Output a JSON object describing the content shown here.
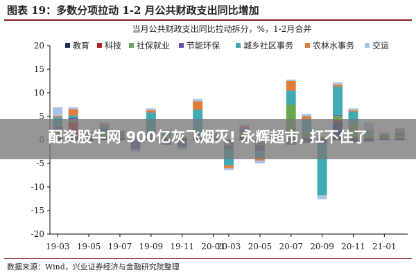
{
  "figure_label": "图表 19：多数分项拉动 1-2 月公共财政支出同比增加",
  "source_note": "数据来源：Wind，兴业证券经济与金融研究院整理",
  "overlay_headline": "配资股牛网 900亿灰飞烟灭! 永辉超市, 扛不住了",
  "chart_data": {
    "type": "bar",
    "stacked": true,
    "title": "当月公共财政支出同比拉动拆分，%，1-2月合并",
    "ylim": [
      -20,
      20
    ],
    "y_ticks": [
      20,
      15,
      10,
      5,
      0,
      -5,
      -10,
      -15,
      -20
    ],
    "x_tick_labels": [
      "19-03",
      "19-05",
      "19-07",
      "19-09",
      "19-11",
      "20-01",
      "20-03",
      "20-05",
      "20-07",
      "20-09",
      "20-11",
      "21-01"
    ],
    "legend_position": "top",
    "categories": [
      "19-03",
      "19-04",
      "19-05",
      "19-06",
      "19-07",
      "19-08",
      "19-09",
      "19-10",
      "19-11",
      "19-12",
      "20-01",
      "20-03",
      "20-04",
      "20-05",
      "20-06",
      "20-07",
      "20-08",
      "20-09",
      "20-10",
      "20-11",
      "20-12",
      "21-01",
      "21-02"
    ],
    "series": [
      {
        "name": "教育",
        "color": "#1f2d6b",
        "values": [
          0.5,
          1.0,
          0.3,
          0.4,
          0.2,
          0.2,
          0.2,
          0.2,
          0.2,
          0.2,
          0.1,
          -0.2,
          0.6,
          0.0,
          0.4,
          0.4,
          0.2,
          0.2,
          3.8,
          0.3,
          0.2,
          0.2,
          0.2
        ]
      },
      {
        "name": "科技",
        "color": "#b22222",
        "values": [
          0.5,
          2.8,
          0.3,
          0.5,
          0.2,
          0.1,
          0.3,
          0.2,
          0.1,
          0.2,
          0.1,
          -0.1,
          0.4,
          -0.1,
          0.3,
          0.6,
          0.2,
          0.1,
          0.5,
          0.2,
          0.1,
          0.1,
          0.2
        ]
      },
      {
        "name": "社保就业",
        "color": "#6aa84f",
        "values": [
          1.2,
          0.6,
          0.3,
          1.0,
          0.5,
          -0.2,
          0.4,
          0.3,
          0.3,
          0.5,
          0.1,
          -1.0,
          0.6,
          -1.0,
          0.5,
          6.5,
          1.5,
          0.2,
          0.8,
          3.0,
          1.0,
          0.3,
          0.6
        ]
      },
      {
        "name": "节能环保",
        "color": "#6a4fa0",
        "values": [
          0.6,
          0.3,
          -0.3,
          0.4,
          0.2,
          -1.8,
          0.4,
          -1.0,
          -1.3,
          0.5,
          0.3,
          -0.6,
          0.6,
          -1.2,
          0.3,
          -1.0,
          -0.6,
          -0.8,
          0.2,
          -0.5,
          -0.4,
          0.3,
          0.3
        ]
      },
      {
        "name": "城乡社区事务",
        "color": "#3fa9b4",
        "values": [
          2.0,
          0.5,
          0.4,
          0.6,
          0.5,
          0.4,
          4.5,
          0.8,
          -0.5,
          5.0,
          0.5,
          -3.5,
          0.3,
          -1.5,
          0.3,
          3.0,
          2.5,
          -11.0,
          6.0,
          2.5,
          0.6,
          0.3,
          0.4
        ]
      },
      {
        "name": "农林水事务",
        "color": "#e07b39",
        "values": [
          0.3,
          1.3,
          0.2,
          0.5,
          0.3,
          0.3,
          0.5,
          0.2,
          0.1,
          1.8,
          0.2,
          -0.6,
          0.5,
          -0.6,
          0.3,
          2.0,
          0.6,
          0.2,
          0.4,
          0.3,
          0.2,
          0.2,
          0.5
        ]
      },
      {
        "name": "交运",
        "color": "#a9c4e8",
        "values": [
          1.8,
          0.4,
          0.2,
          0.3,
          0.2,
          -0.5,
          0.4,
          0.3,
          -0.3,
          0.5,
          0.2,
          -0.4,
          0.3,
          -0.6,
          0.2,
          0.3,
          0.5,
          -0.8,
          0.5,
          0.4,
          1.5,
          0.2,
          0.3
        ]
      }
    ]
  }
}
